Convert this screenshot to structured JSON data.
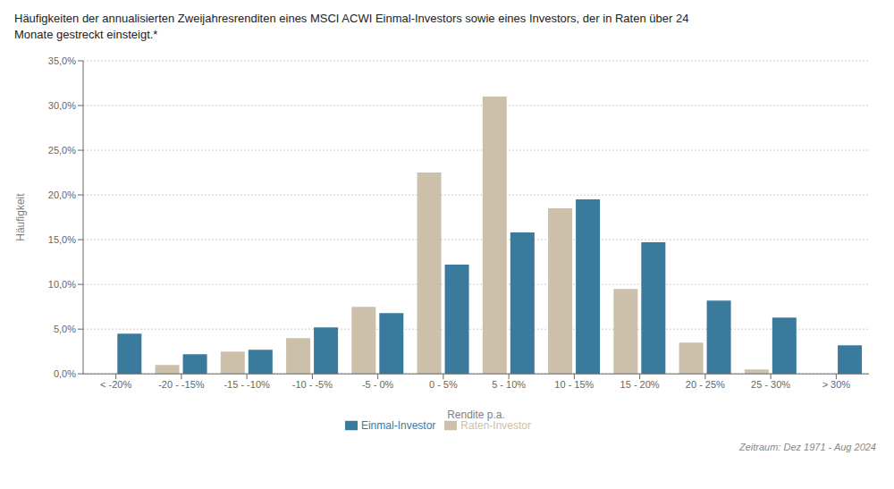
{
  "chart_data": {
    "type": "bar",
    "title": "Häufigkeiten der annualisierten Zweijahresrenditen eines MSCI ACWI Einmal-Investors sowie eines Investors, der in Raten über 24\nMonate gestreckt einsteigt.*",
    "categories": [
      "< -20%",
      "-20 - -15%",
      "-15 - -10%",
      "-10 - -5%",
      "-5 - 0%",
      "0 - 5%",
      "5 - 10%",
      "10 - 15%",
      "15 - 20%",
      "20 - 25%",
      "25 - 30%",
      "> 30%"
    ],
    "series": [
      {
        "name": "Raten-Investor",
        "color": "#ccc0aa",
        "values": [
          0.0,
          1.0,
          2.5,
          4.0,
          7.5,
          22.5,
          31.0,
          18.5,
          9.5,
          3.5,
          0.5,
          0.0
        ]
      },
      {
        "name": "Einmal-Investor",
        "color": "#3a7a9c",
        "values": [
          4.5,
          2.2,
          2.7,
          5.2,
          6.8,
          12.2,
          15.8,
          19.5,
          14.7,
          8.2,
          6.3,
          3.2
        ]
      }
    ],
    "xlabel": "Rendite p.a.",
    "ylabel": "Häufigkeit",
    "ylim": [
      0,
      35
    ],
    "yticks": [
      {
        "value": 0.0,
        "label": "0,0%"
      },
      {
        "value": 5.0,
        "label": "5,0%"
      },
      {
        "value": 10.0,
        "label": "10,0%"
      },
      {
        "value": 15.0,
        "label": "15,0%"
      },
      {
        "value": 20.0,
        "label": "20,0%"
      },
      {
        "value": 25.0,
        "label": "25,0%"
      },
      {
        "value": 30.0,
        "label": "30,0%"
      },
      {
        "value": 35.0,
        "label": "35,0%"
      }
    ],
    "grid": true,
    "legend": "bottom",
    "annotations": [
      "Zeitraum: Dez 1971 - Aug 2024"
    ]
  }
}
